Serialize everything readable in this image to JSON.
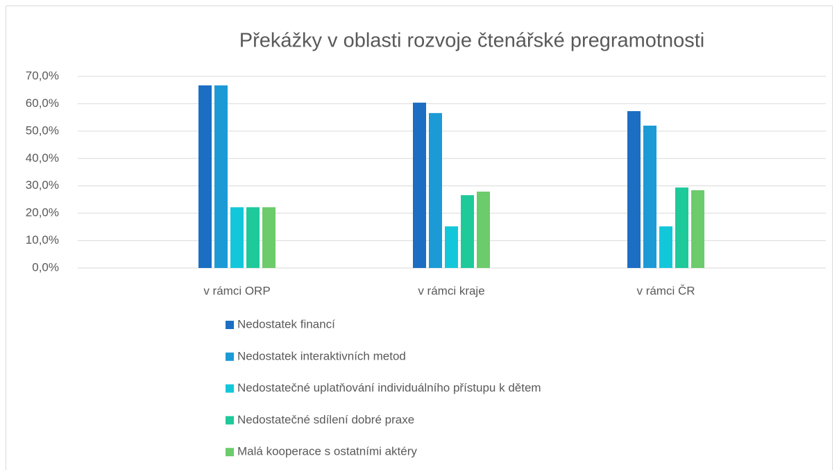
{
  "chart_data": {
    "type": "bar",
    "title": "Překážky v oblasti rozvoje čtenářské pregramotnosti",
    "categories": [
      "v rámci ORP",
      "v rámci kraje",
      "v rámci ČR"
    ],
    "series": [
      {
        "name": "Nedostatek financí",
        "color": "#1b6ec2",
        "values": [
          66.7,
          60.4,
          57.3
        ]
      },
      {
        "name": "Nedostatek interaktivních metod",
        "color": "#1c9ad6",
        "values": [
          66.7,
          56.6,
          52.0
        ]
      },
      {
        "name": "Nedostatečné uplatňování individuálního přístupu k dětem",
        "color": "#13c7db",
        "values": [
          22.2,
          15.2,
          15.2
        ]
      },
      {
        "name": "Nedostatečné sdílení dobré praxe",
        "color": "#1ec99a",
        "values": [
          22.2,
          26.6,
          29.4
        ]
      },
      {
        "name": "Malá kooperace s ostatními aktéry",
        "color": "#6ccb6b",
        "values": [
          22.2,
          27.9,
          28.4
        ]
      }
    ],
    "ylim": [
      0,
      70
    ],
    "yticks": [
      {
        "value": 0,
        "label": "0,0%"
      },
      {
        "value": 10,
        "label": "10,0%"
      },
      {
        "value": 20,
        "label": "20,0%"
      },
      {
        "value": 30,
        "label": "30,0%"
      },
      {
        "value": 40,
        "label": "40,0%"
      },
      {
        "value": 50,
        "label": "50,0%"
      },
      {
        "value": 60,
        "label": "60,0%"
      },
      {
        "value": 70,
        "label": "70,0%"
      }
    ],
    "grid": true,
    "legend": "bottom"
  }
}
